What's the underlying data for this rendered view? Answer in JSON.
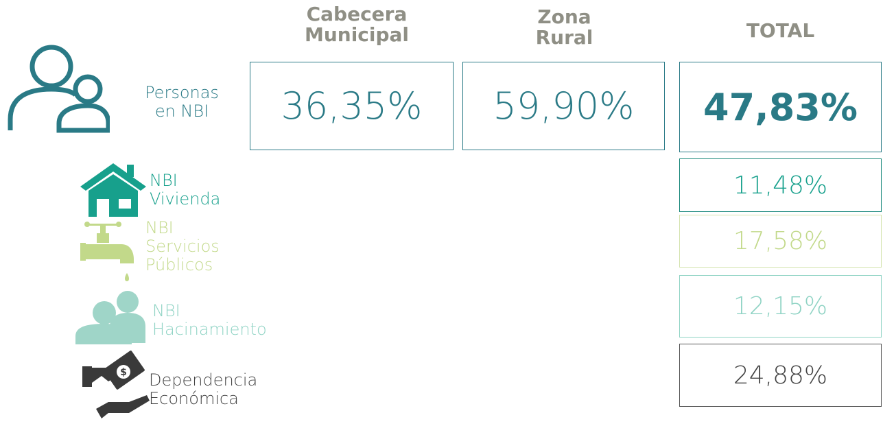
{
  "columns": [
    "Cabecera Municipal",
    "Zona Rural",
    "TOTAL"
  ],
  "main": {
    "label": [
      "Personas",
      "en NBI"
    ],
    "values": [
      "36,35%",
      "59,90%",
      "47,83%"
    ]
  },
  "components": [
    {
      "label": [
        "NBI",
        "Vivienda"
      ],
      "total": "11,48%"
    },
    {
      "label": [
        "NBI",
        "Servicios",
        "Públicos"
      ],
      "total": "17,58%"
    },
    {
      "label": [
        "NBI",
        "Hacinamiento"
      ],
      "total": "12,15%"
    },
    {
      "label": [
        "Dependencia",
        "Económica"
      ],
      "total": "24,88%"
    }
  ]
}
